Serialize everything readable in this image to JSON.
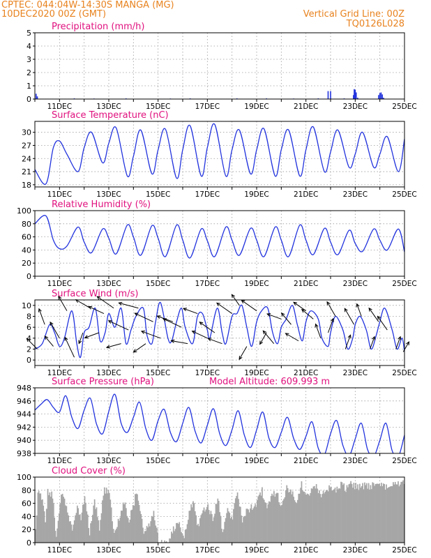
{
  "header": {
    "line1_left": "CPTEC:   044:04W-14:30S   MANGA (MG)",
    "line2_left": "10DEC2020 00Z (GMT)",
    "line1_right": "Vertical Grid Line: 00Z",
    "line2_right": "TQ0126L028"
  },
  "colors": {
    "header": "#e8821e",
    "title": "#e0107e",
    "series": "#2233dd",
    "cloud": "#a6a6a6",
    "grid": "#9a9a9a"
  },
  "chart_data": [
    {
      "id": "precip",
      "type": "bar",
      "title": "Precipitation (mm/h)",
      "x_range_days": [
        10,
        25
      ],
      "xtick_labels": [
        "11DEC",
        "13DEC",
        "15DEC",
        "17DEC",
        "19DEC",
        "21DEC",
        "23DEC",
        "25DEC"
      ],
      "ylim": [
        0,
        5
      ],
      "yticks": [
        0,
        1,
        2,
        3,
        4,
        5
      ],
      "x": [
        10.05,
        10.1,
        11.6,
        12.4,
        13.7,
        15.5,
        16.3,
        18.2,
        19.4,
        20.5,
        21.5,
        21.9,
        22.0,
        22.55,
        22.93,
        22.96,
        23.0,
        23.04,
        23.1,
        23.95,
        24.0,
        24.05,
        24.1,
        24.15
      ],
      "values": [
        0.4,
        0.2,
        0.05,
        0.04,
        0.05,
        0.04,
        0.05,
        0.05,
        0.05,
        0.04,
        0.05,
        0.6,
        0.6,
        0.05,
        0.3,
        0.75,
        0.7,
        0.5,
        0.1,
        0.3,
        0.45,
        0.5,
        0.35,
        0.1
      ]
    },
    {
      "id": "temp",
      "type": "line",
      "title": "Surface Temperature (nC)",
      "x_range_days": [
        10,
        25
      ],
      "xtick_labels": [
        "11DEC",
        "13DEC",
        "15DEC",
        "17DEC",
        "19DEC",
        "21DEC",
        "23DEC",
        "25DEC"
      ],
      "ylim": [
        17.5,
        32.5
      ],
      "yticks": [
        18,
        21,
        24,
        27,
        30
      ],
      "x": [
        10.0,
        10.45,
        10.75,
        11.0,
        11.3,
        11.75,
        12.0,
        12.3,
        12.75,
        13.0,
        13.3,
        13.75,
        14.0,
        14.3,
        14.75,
        15.0,
        15.3,
        15.75,
        16.0,
        16.3,
        16.75,
        17.0,
        17.3,
        17.75,
        18.0,
        18.3,
        18.75,
        19.0,
        19.3,
        19.75,
        20.0,
        20.3,
        20.75,
        21.0,
        21.3,
        21.75,
        22.0,
        22.3,
        22.75,
        23.0,
        23.3,
        23.75,
        24.0,
        24.3,
        24.75,
        25.0
      ],
      "values": [
        21.5,
        18.2,
        26.5,
        28.0,
        25.0,
        21.0,
        26.5,
        30.0,
        23.0,
        27.5,
        31.0,
        20.0,
        24.5,
        30.5,
        20.5,
        26.0,
        30.7,
        19.5,
        26.0,
        31.5,
        20.0,
        26.5,
        31.8,
        20.0,
        26.0,
        30.5,
        20.5,
        26.0,
        30.8,
        20.0,
        26.0,
        30.5,
        20.0,
        26.0,
        31.2,
        21.0,
        25.5,
        30.5,
        22.0,
        25.0,
        30.0,
        22.0,
        25.0,
        29.0,
        21.0,
        28.5
      ]
    },
    {
      "id": "rh",
      "type": "line",
      "title": "Relative Humidity (%)",
      "x_range_days": [
        10,
        25
      ],
      "xtick_labels": [
        "11DEC",
        "13DEC",
        "15DEC",
        "17DEC",
        "19DEC",
        "21DEC",
        "23DEC",
        "25DEC"
      ],
      "ylim": [
        0,
        100
      ],
      "yticks": [
        0,
        20,
        40,
        60,
        80,
        100
      ],
      "x": [
        10.0,
        10.45,
        10.75,
        11.0,
        11.3,
        11.75,
        12.0,
        12.3,
        12.75,
        13.0,
        13.3,
        13.75,
        14.0,
        14.3,
        14.75,
        15.0,
        15.3,
        15.75,
        16.0,
        16.3,
        16.75,
        17.0,
        17.3,
        17.75,
        18.0,
        18.3,
        18.75,
        19.0,
        19.3,
        19.75,
        20.0,
        20.3,
        20.75,
        21.0,
        21.3,
        21.75,
        22.0,
        22.3,
        22.75,
        23.0,
        23.3,
        23.75,
        24.0,
        24.3,
        24.75,
        25.0
      ],
      "values": [
        80,
        92,
        55,
        42,
        46,
        75,
        52,
        36,
        72,
        58,
        34,
        78,
        60,
        32,
        77,
        58,
        30,
        78,
        55,
        28,
        72,
        54,
        30,
        75,
        55,
        32,
        73,
        55,
        30,
        75,
        55,
        30,
        78,
        55,
        33,
        73,
        52,
        33,
        70,
        50,
        38,
        72,
        55,
        40,
        72,
        37
      ]
    },
    {
      "id": "wind",
      "type": "line",
      "title": "Surface Wind (m/s)",
      "x_range_days": [
        10,
        25
      ],
      "xtick_labels": [
        "11DEC",
        "13DEC",
        "15DEC",
        "17DEC",
        "19DEC",
        "21DEC",
        "23DEC",
        "25DEC"
      ],
      "ylim": [
        -1,
        11
      ],
      "yticks": [
        0,
        2,
        4,
        6,
        8,
        10
      ],
      "x": [
        10.0,
        10.3,
        10.6,
        10.8,
        11.0,
        11.2,
        11.5,
        11.7,
        11.85,
        12.0,
        12.2,
        12.45,
        12.65,
        12.85,
        13.0,
        13.25,
        13.5,
        13.7,
        13.9,
        14.1,
        14.4,
        14.55,
        14.75,
        14.9,
        15.1,
        15.4,
        15.55,
        15.75,
        15.95,
        16.1,
        16.4,
        16.6,
        16.8,
        17.0,
        17.1,
        17.4,
        17.6,
        17.75,
        18.0,
        18.2,
        18.4,
        18.6,
        18.8,
        19.0,
        19.2,
        19.45,
        19.65,
        19.85,
        20.0,
        20.2,
        20.45,
        20.65,
        20.85,
        21.0,
        21.2,
        21.5,
        21.65,
        21.9,
        22.0,
        22.2,
        22.5,
        22.7,
        22.9,
        23.0,
        23.2,
        23.45,
        23.65,
        23.85,
        24.0,
        24.2,
        24.5,
        24.7,
        24.9,
        25.0
      ],
      "values": [
        2.0,
        3.0,
        6.5,
        5.0,
        2.5,
        4.0,
        9.0,
        3.0,
        0.5,
        5.0,
        6.0,
        9.5,
        3.5,
        5.0,
        8.5,
        6.0,
        9.5,
        3.0,
        5.5,
        8.0,
        9.5,
        4.5,
        3.0,
        7.0,
        10.5,
        4.0,
        3.5,
        7.0,
        9.5,
        6.0,
        3.0,
        8.0,
        8.5,
        5.5,
        4.0,
        9.5,
        5.0,
        3.0,
        8.0,
        8.5,
        10.0,
        6.0,
        2.5,
        7.0,
        9.0,
        9.5,
        5.0,
        3.0,
        6.0,
        7.5,
        10.0,
        6.5,
        3.5,
        7.0,
        9.0,
        7.5,
        4.0,
        2.5,
        5.0,
        8.0,
        5.5,
        2.0,
        4.0,
        6.5,
        8.0,
        5.5,
        2.0,
        4.5,
        7.0,
        9.5,
        5.5,
        2.0,
        4.0,
        1.5
      ],
      "barbs": [
        {
          "day": 10.1,
          "speed": 2.5,
          "dir_deg": 225
        },
        {
          "day": 10.4,
          "speed": 3.0,
          "dir_deg": 200
        },
        {
          "day": 10.75,
          "speed": 2.0,
          "dir_deg": 220
        },
        {
          "day": 11.0,
          "speed": 3.5,
          "dir_deg": 210
        },
        {
          "day": 11.3,
          "speed": 3.0,
          "dir_deg": 210
        },
        {
          "day": 11.6,
          "speed": 4.5,
          "dir_deg": 205
        },
        {
          "day": 11.95,
          "speed": 1.5,
          "dir_deg": 340
        },
        {
          "day": 12.25,
          "speed": 3.0,
          "dir_deg": 240
        },
        {
          "day": 12.6,
          "speed": 2.5,
          "dir_deg": 290
        },
        {
          "day": 12.8,
          "speed": 3.0,
          "dir_deg": 245
        },
        {
          "day": 13.2,
          "speed": 4.0,
          "dir_deg": 235
        },
        {
          "day": 13.5,
          "speed": 2.5,
          "dir_deg": 285
        },
        {
          "day": 13.8,
          "speed": 4.5,
          "dir_deg": 245
        },
        {
          "day": 14.2,
          "speed": 4.0,
          "dir_deg": 255
        },
        {
          "day": 14.5,
          "speed": 2.5,
          "dir_deg": 305
        },
        {
          "day": 14.8,
          "speed": 4.0,
          "dir_deg": 245
        },
        {
          "day": 15.1,
          "speed": 4.0,
          "dir_deg": 250
        },
        {
          "day": 15.6,
          "speed": 3.0,
          "dir_deg": 250
        },
        {
          "day": 15.95,
          "speed": 4.0,
          "dir_deg": 245
        },
        {
          "day": 16.2,
          "speed": 3.0,
          "dir_deg": 260
        },
        {
          "day": 16.6,
          "speed": 2.5,
          "dir_deg": 250
        },
        {
          "day": 17.0,
          "speed": 3.0,
          "dir_deg": 245
        },
        {
          "day": 17.3,
          "speed": 3.5,
          "dir_deg": 235
        },
        {
          "day": 17.6,
          "speed": 2.5,
          "dir_deg": 250
        },
        {
          "day": 18.0,
          "speed": 3.5,
          "dir_deg": 235
        },
        {
          "day": 18.3,
          "speed": 2.0,
          "dir_deg": 215
        },
        {
          "day": 18.6,
          "speed": 2.5,
          "dir_deg": 330
        },
        {
          "day": 19.0,
          "speed": 3.5,
          "dir_deg": 235
        },
        {
          "day": 19.4,
          "speed": 2.0,
          "dir_deg": 330
        },
        {
          "day": 19.7,
          "speed": 3.0,
          "dir_deg": 220
        },
        {
          "day": 20.0,
          "speed": 2.5,
          "dir_deg": 250
        },
        {
          "day": 20.4,
          "speed": 2.5,
          "dir_deg": 220
        },
        {
          "day": 20.7,
          "speed": 2.5,
          "dir_deg": 240
        },
        {
          "day": 21.0,
          "speed": 2.5,
          "dir_deg": 235
        },
        {
          "day": 21.3,
          "speed": 2.5,
          "dir_deg": 230
        },
        {
          "day": 21.6,
          "speed": 2.5,
          "dir_deg": 200
        },
        {
          "day": 21.9,
          "speed": 2.5,
          "dir_deg": 160
        },
        {
          "day": 22.2,
          "speed": 3.0,
          "dir_deg": 210
        },
        {
          "day": 22.6,
          "speed": 2.5,
          "dir_deg": 160
        },
        {
          "day": 22.95,
          "speed": 3.5,
          "dir_deg": 210
        },
        {
          "day": 23.25,
          "speed": 2.0,
          "dir_deg": 200
        },
        {
          "day": 23.6,
          "speed": 2.0,
          "dir_deg": 160
        },
        {
          "day": 23.95,
          "speed": 3.0,
          "dir_deg": 215
        },
        {
          "day": 24.3,
          "speed": 3.0,
          "dir_deg": 215
        },
        {
          "day": 24.65,
          "speed": 2.0,
          "dir_deg": 160
        },
        {
          "day": 24.95,
          "speed": 1.5,
          "dir_deg": 150
        }
      ]
    },
    {
      "id": "pressure",
      "type": "line",
      "title": "Surface Pressure (hPa)",
      "annotation": "Model Altitude: 609.993 m",
      "x_range_days": [
        10,
        25
      ],
      "xtick_labels": [
        "11DEC",
        "13DEC",
        "15DEC",
        "17DEC",
        "19DEC",
        "21DEC",
        "23DEC",
        "25DEC"
      ],
      "ylim": [
        938,
        948
      ],
      "yticks": [
        938,
        940,
        942,
        944,
        946,
        948
      ],
      "x": [
        10.0,
        10.25,
        10.5,
        10.75,
        11.0,
        11.25,
        11.5,
        11.75,
        12.0,
        12.25,
        12.5,
        12.75,
        13.0,
        13.25,
        13.5,
        13.75,
        14.0,
        14.25,
        14.5,
        14.75,
        15.0,
        15.25,
        15.5,
        15.75,
        16.0,
        16.25,
        16.5,
        16.75,
        17.0,
        17.25,
        17.5,
        17.75,
        18.0,
        18.25,
        18.5,
        18.75,
        19.0,
        19.25,
        19.5,
        19.75,
        20.0,
        20.25,
        20.5,
        20.75,
        21.0,
        21.25,
        21.5,
        21.75,
        22.0,
        22.25,
        22.5,
        22.75,
        23.0,
        23.25,
        23.5,
        23.75,
        24.0,
        24.25,
        24.5,
        24.75,
        25.0
      ],
      "values": [
        944.6,
        945.5,
        946.2,
        945.0,
        944.3,
        946.8,
        943.5,
        941.8,
        944.6,
        946.4,
        942.5,
        941.0,
        944.4,
        947.0,
        942.6,
        941.2,
        943.5,
        945.8,
        941.8,
        940.0,
        943.0,
        944.7,
        941.2,
        939.8,
        942.6,
        945.0,
        941.4,
        939.6,
        942.3,
        944.8,
        941.0,
        939.2,
        941.6,
        944.5,
        940.8,
        938.9,
        941.6,
        944.3,
        940.3,
        938.9,
        941.2,
        943.5,
        940.3,
        938.6,
        940.6,
        942.8,
        938.8,
        937.8,
        941.0,
        943.0,
        939.2,
        937.6,
        940.2,
        942.6,
        938.6,
        937.5,
        940.0,
        942.6,
        938.4,
        937.5,
        940.8
      ]
    },
    {
      "id": "cloud",
      "type": "area",
      "title": "Cloud Cover (%)",
      "x_range_days": [
        10,
        25
      ],
      "xtick_labels": [
        "11DEC",
        "13DEC",
        "15DEC",
        "17DEC",
        "19DEC",
        "21DEC",
        "23DEC",
        "25DEC"
      ],
      "ylim": [
        0,
        100
      ],
      "yticks": [
        0,
        20,
        40,
        60,
        80,
        100
      ],
      "x": [
        10.0,
        10.1,
        10.25,
        10.4,
        10.5,
        10.7,
        10.85,
        11.0,
        11.1,
        11.3,
        11.5,
        11.7,
        11.85,
        12.0,
        12.2,
        12.4,
        12.6,
        12.8,
        13.0,
        13.2,
        13.4,
        13.6,
        13.8,
        14.0,
        14.1,
        14.25,
        14.4,
        14.6,
        14.8,
        15.0,
        15.2,
        15.4,
        15.6,
        15.8,
        16.0,
        16.2,
        16.4,
        16.6,
        16.8,
        17.0,
        17.2,
        17.4,
        17.6,
        17.8,
        18.0,
        18.2,
        18.4,
        18.6,
        18.8,
        19.0,
        19.2,
        19.4,
        19.6,
        19.8,
        20.0,
        20.2,
        20.4,
        20.6,
        20.8,
        21.0,
        21.2,
        21.4,
        21.6,
        21.8,
        22.0,
        22.2,
        22.4,
        22.6,
        22.8,
        23.0,
        23.2,
        23.4,
        23.6,
        23.8,
        24.0,
        24.2,
        24.4,
        24.6,
        24.8,
        25.0
      ],
      "values": [
        20,
        85,
        75,
        40,
        82,
        78,
        10,
        70,
        80,
        55,
        25,
        60,
        45,
        78,
        20,
        70,
        30,
        88,
        80,
        15,
        45,
        70,
        40,
        68,
        85,
        55,
        20,
        30,
        55,
        10,
        5,
        8,
        25,
        40,
        12,
        45,
        70,
        30,
        55,
        65,
        40,
        75,
        20,
        55,
        45,
        85,
        40,
        55,
        60,
        68,
        85,
        55,
        78,
        80,
        60,
        88,
        85,
        70,
        95,
        78,
        85,
        90,
        80,
        88,
        92,
        85,
        96,
        88,
        95,
        92,
        90,
        95,
        92,
        97,
        95,
        92,
        96,
        93,
        98,
        97
      ]
    }
  ]
}
